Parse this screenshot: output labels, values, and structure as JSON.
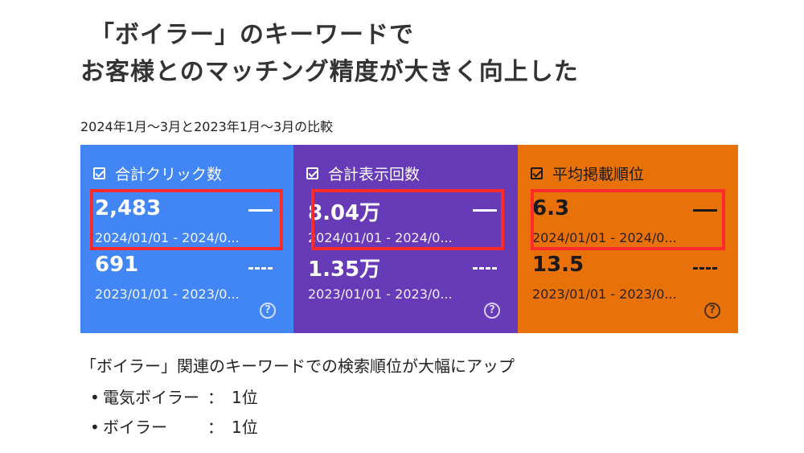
{
  "title": {
    "line1": "「ボイラー」のキーワードで",
    "line2": "お客様とのマッチング精度が大きく向上した"
  },
  "subtitle": "2024年1月～3月と2023年1月～3月の比較",
  "cards": [
    {
      "label": "合計クリック数",
      "current_value": "2,483",
      "current_range": "2024/01/01 - 2024/0...",
      "previous_value": "691",
      "previous_range": "2023/01/01 - 2023/0...",
      "color": "#4285f4"
    },
    {
      "label": "合計表示回数",
      "current_value": "8.04万",
      "current_range": "2024/01/01 - 2024/0...",
      "previous_value": "1.35万",
      "previous_range": "2023/01/01 - 2023/0...",
      "color": "#673ab7"
    },
    {
      "label": "平均掲載順位",
      "current_value": "6.3",
      "current_range": "2024/01/01 - 2024/0...",
      "previous_value": "13.5",
      "previous_range": "2023/01/01 - 2023/0...",
      "color": "#e8710a"
    }
  ],
  "help_symbol": "?",
  "highlight_color": "#ff2a2a",
  "summary": "「ボイラー」関連のキーワードでの検索順位が大幅にアップ",
  "bullets": [
    {
      "keyword": "電気ボイラー",
      "separator": "：",
      "rank": "1位"
    },
    {
      "keyword": "ボイラー",
      "separator": "：",
      "rank": "1位"
    }
  ]
}
